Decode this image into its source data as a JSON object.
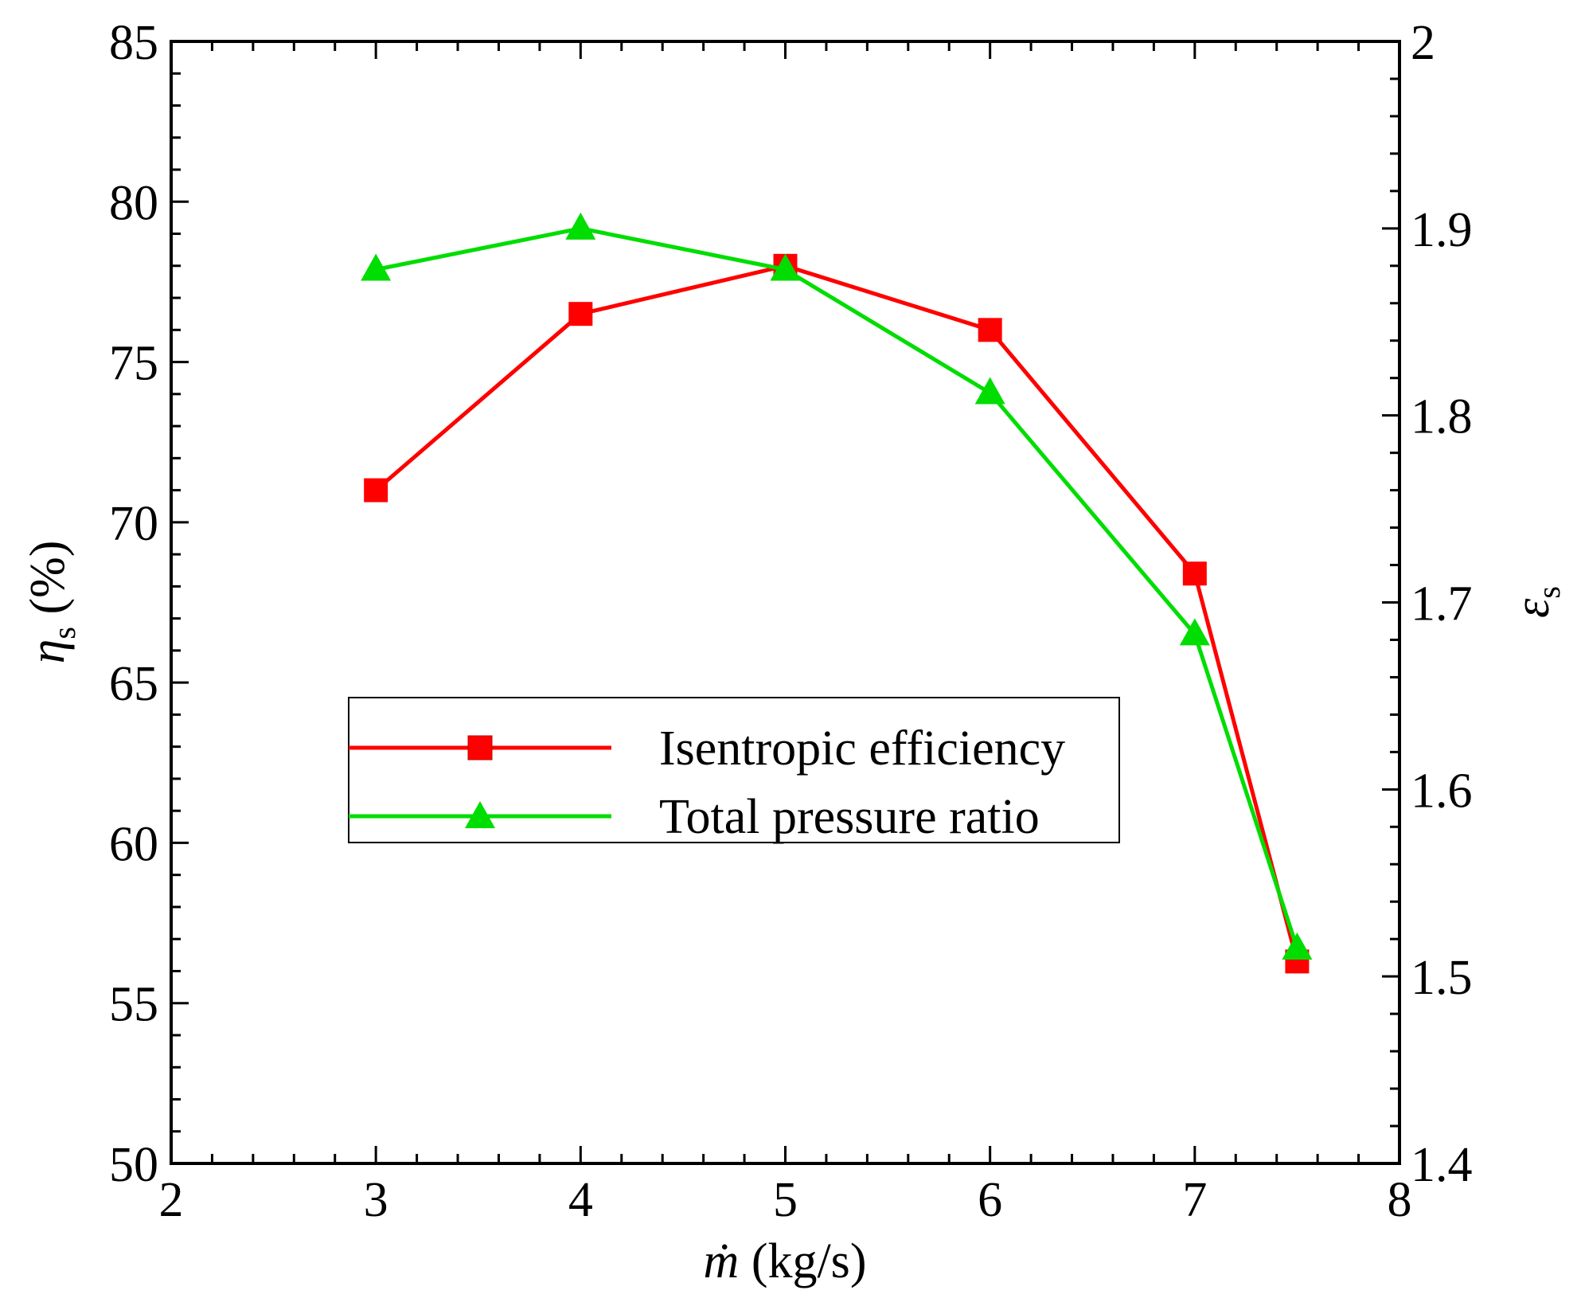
{
  "chart_data": {
    "type": "line",
    "title": "",
    "x": [
      3,
      4,
      5,
      6,
      7,
      7.5
    ],
    "xlabel": {
      "symbol": "ṁ",
      "unit": " (kg/s)"
    },
    "xlim": [
      2,
      8
    ],
    "xticks": [
      "2",
      "3",
      "4",
      "5",
      "6",
      "7",
      "8"
    ],
    "y_left": {
      "label": {
        "symbol": "η",
        "subscript": "s",
        "unit": " (%)"
      },
      "lim": [
        50,
        85
      ],
      "ticks": [
        "50",
        "55",
        "60",
        "65",
        "70",
        "75",
        "80",
        "85"
      ]
    },
    "y_right": {
      "label": {
        "symbol": "ε",
        "subscript": "s"
      },
      "lim": [
        1.4,
        2.0
      ],
      "ticks": [
        "1.4",
        "1.5",
        "1.6",
        "1.7",
        "1.8",
        "1.9",
        "2"
      ]
    },
    "series": [
      {
        "name": "Isentropic efficiency",
        "axis": "left",
        "marker": "square",
        "color": "#ff0000",
        "values": [
          71.0,
          76.5,
          78.0,
          76.0,
          68.4,
          56.3
        ]
      },
      {
        "name": "Total pressure ratio",
        "axis": "right",
        "marker": "triangle",
        "color": "#00dd00",
        "values": [
          1.878,
          1.9,
          1.878,
          1.812,
          1.683,
          1.515
        ]
      }
    ],
    "legend": "center-left"
  }
}
